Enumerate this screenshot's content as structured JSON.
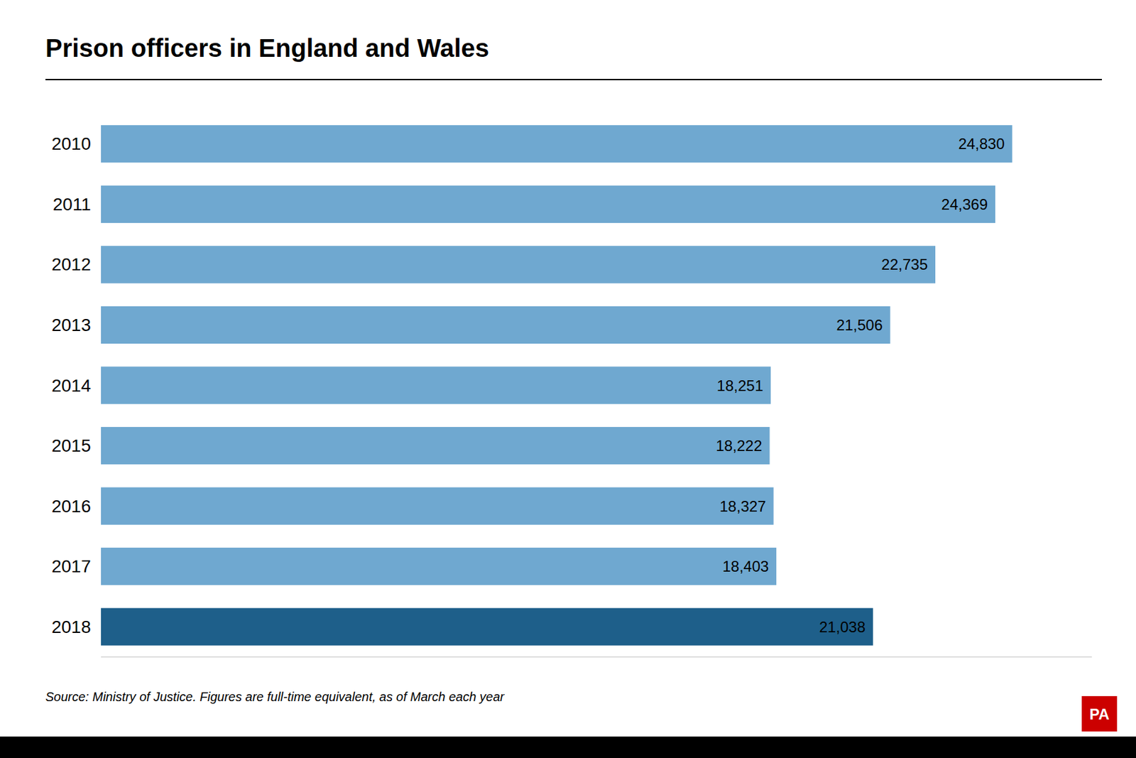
{
  "chart_data": {
    "type": "bar",
    "orientation": "horizontal",
    "title": "Prison officers in England and Wales",
    "source": "Source: Ministry of Justice. Figures are full-time equivalent, as of March each year",
    "annotations": [
      {
        "text": "PA",
        "color": "#cc0000"
      }
    ],
    "categories": [
      "2010",
      "2011",
      "2012",
      "2013",
      "2014",
      "2015",
      "2016",
      "2017",
      "2018"
    ],
    "values": [
      24830,
      24369,
      22735,
      21506,
      18251,
      18222,
      18327,
      18403,
      21038
    ],
    "value_labels": [
      "24,830",
      "24,369",
      "22,735",
      "21,506",
      "18,251",
      "18,222",
      "18,327",
      "18,403",
      "21,038"
    ],
    "colors": [
      "#6fa8d0",
      "#6fa8d0",
      "#6fa8d0",
      "#6fa8d0",
      "#6fa8d0",
      "#6fa8d0",
      "#6fa8d0",
      "#6fa8d0",
      "#1e5f8a"
    ],
    "xlim": [
      0,
      27000
    ],
    "data_labels": true,
    "tick_labels": "y",
    "grid": false
  }
}
